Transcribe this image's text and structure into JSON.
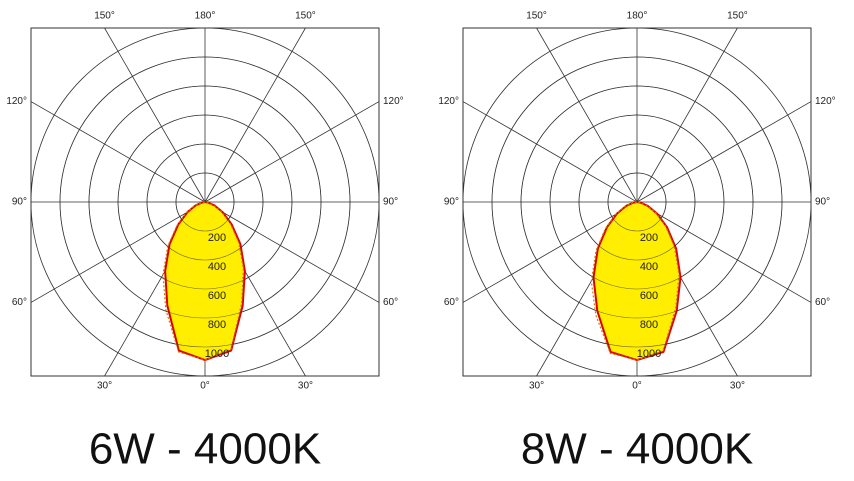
{
  "chart_data": [
    {
      "type": "polar",
      "title": "6W - 4000K",
      "angles": [
        -90,
        -80,
        -70,
        -60,
        -50,
        -40,
        -30,
        -20,
        -10,
        0,
        10,
        20,
        30,
        40,
        50,
        60,
        70,
        80,
        90
      ],
      "series": [
        {
          "color": "#e00000",
          "fill": "#ffee00",
          "dash": false,
          "values": [
            0,
            20,
            70,
            140,
            240,
            380,
            550,
            760,
            1040,
            1090,
            1040,
            760,
            550,
            380,
            240,
            140,
            70,
            20,
            0
          ]
        },
        {
          "color": "#c08000",
          "dash": true,
          "values": [
            0,
            25,
            80,
            150,
            255,
            400,
            580,
            790,
            1050,
            1090,
            1030,
            740,
            530,
            360,
            225,
            130,
            60,
            15,
            0
          ]
        }
      ],
      "rlim": [
        0,
        1200
      ],
      "rticks": [
        200,
        400,
        600,
        800,
        1000
      ],
      "thetaticks": [
        {
          "value": -150,
          "label": "150°"
        },
        {
          "value": 180,
          "label": "180°"
        },
        {
          "value": 150,
          "label": "150°"
        },
        {
          "value": -120,
          "label": "120°"
        },
        {
          "value": 120,
          "label": "120°"
        },
        {
          "value": -90,
          "label": "90°"
        },
        {
          "value": 90,
          "label": "90°"
        },
        {
          "value": -60,
          "label": "60°"
        },
        {
          "value": 60,
          "label": "60°"
        },
        {
          "value": -30,
          "label": "30°"
        },
        {
          "value": 0,
          "label": "0°"
        },
        {
          "value": 30,
          "label": "30°"
        }
      ]
    },
    {
      "type": "polar",
      "title": "8W - 4000K",
      "angles": [
        -90,
        -80,
        -70,
        -60,
        -50,
        -40,
        -30,
        -20,
        -10,
        0,
        10,
        20,
        30,
        40,
        50,
        60,
        70,
        80,
        90
      ],
      "series": [
        {
          "color": "#e00000",
          "fill": "#ffee00",
          "dash": false,
          "values": [
            0,
            25,
            80,
            160,
            270,
            420,
            600,
            800,
            1050,
            1090,
            1050,
            800,
            600,
            420,
            270,
            160,
            80,
            25,
            0
          ]
        },
        {
          "color": "#c08000",
          "dash": true,
          "values": [
            0,
            30,
            90,
            170,
            285,
            440,
            630,
            830,
            1060,
            1090,
            1040,
            780,
            580,
            400,
            255,
            150,
            70,
            20,
            0
          ]
        }
      ],
      "rlim": [
        0,
        1200
      ],
      "rticks": [
        200,
        400,
        600,
        800,
        1000
      ],
      "thetaticks": [
        {
          "value": -150,
          "label": "150°"
        },
        {
          "value": 180,
          "label": "180°"
        },
        {
          "value": 150,
          "label": "150°"
        },
        {
          "value": -120,
          "label": "120°"
        },
        {
          "value": 120,
          "label": "120°"
        },
        {
          "value": -90,
          "label": "90°"
        },
        {
          "value": 90,
          "label": "90°"
        },
        {
          "value": -60,
          "label": "60°"
        },
        {
          "value": 60,
          "label": "60°"
        },
        {
          "value": -30,
          "label": "30°"
        },
        {
          "value": 0,
          "label": "0°"
        },
        {
          "value": 30,
          "label": "30°"
        }
      ]
    }
  ]
}
